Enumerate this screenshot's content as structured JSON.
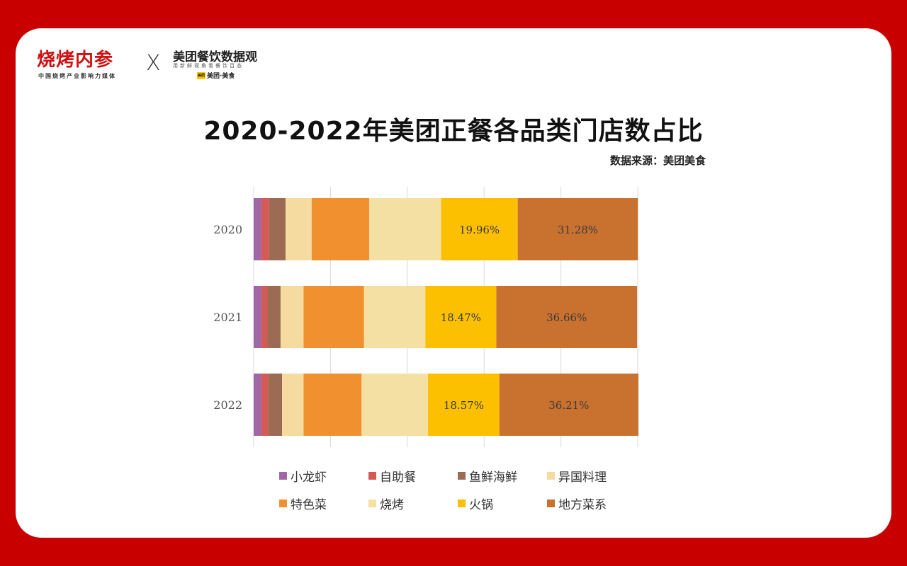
{
  "header": {
    "logo_left": "烧烤内参",
    "logo_left_sub": "中国烧烤产业影响力媒体",
    "logo_x": "X",
    "logo_right": "美团餐饮数据观",
    "logo_right_sub": "用新鲜视角看餐饮百态",
    "logo_right_brand_mark": "美团",
    "logo_right_brand": "美团·美食"
  },
  "chart_data": {
    "type": "bar",
    "orientation": "horizontal",
    "stacked": true,
    "title": "2020-2022年美团正餐各品类门店数占比",
    "source": "数据来源：美团美食",
    "categories": [
      "2020",
      "2021",
      "2022"
    ],
    "xlim": [
      0,
      100
    ],
    "grid": true,
    "legend_position": "bottom",
    "series": [
      {
        "name": "小龙虾",
        "color": "#a066a6",
        "values": [
          2.0,
          2.0,
          2.0
        ]
      },
      {
        "name": "自助餐",
        "color": "#d45a55",
        "values": [
          2.0,
          1.6,
          1.8
        ]
      },
      {
        "name": "鱼鲜海鲜",
        "color": "#9c6b53",
        "values": [
          4.3,
          3.4,
          3.6
        ]
      },
      {
        "name": "异国料理",
        "color": "#f6dba0",
        "values": [
          6.8,
          6.0,
          5.6
        ]
      },
      {
        "name": "特色菜",
        "color": "#f0902e",
        "values": [
          15.0,
          15.7,
          15.1
        ]
      },
      {
        "name": "烧烤",
        "color": "#f5e0a4",
        "values": [
          18.7,
          16.0,
          17.3
        ]
      },
      {
        "name": "火锅",
        "color": "#fcc000",
        "values": [
          19.96,
          18.47,
          18.57
        ],
        "labels": [
          "19.96%",
          "18.47%",
          "18.57%"
        ]
      },
      {
        "name": "地方菜系",
        "color": "#c97230",
        "values": [
          31.28,
          36.66,
          36.21
        ],
        "labels": [
          "31.28%",
          "36.66%",
          "36.21%"
        ]
      }
    ]
  }
}
